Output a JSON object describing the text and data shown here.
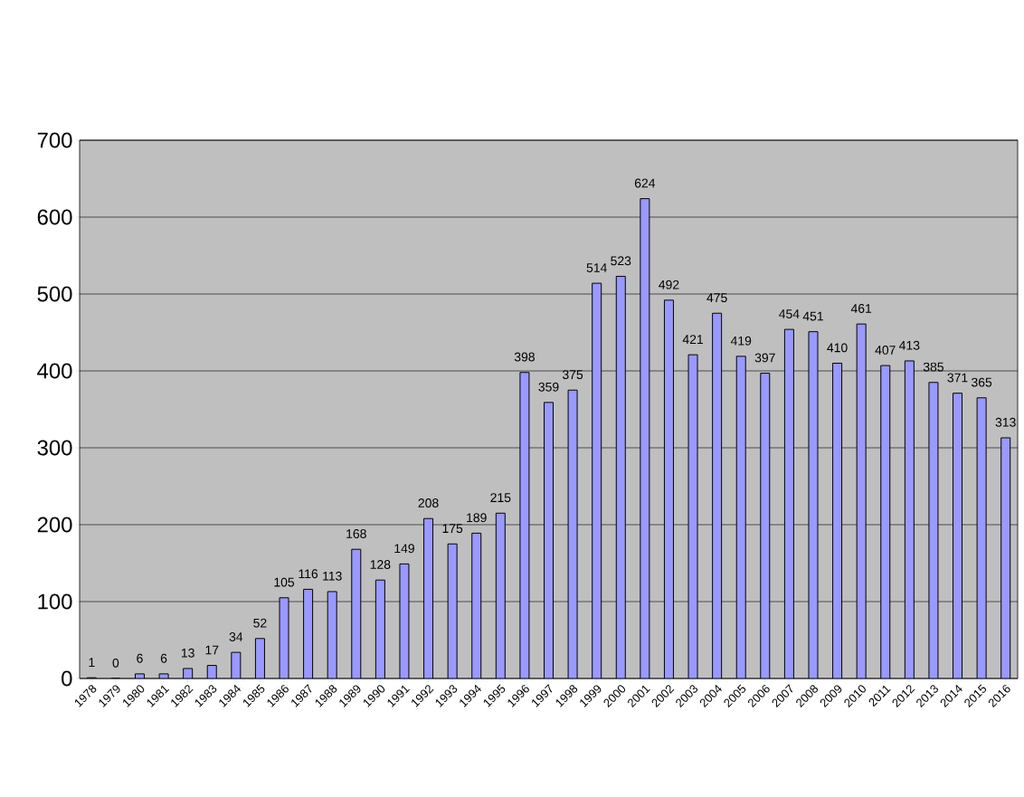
{
  "chart_data": {
    "type": "bar",
    "categories": [
      "1978",
      "1979",
      "1980",
      "1981",
      "1982",
      "1983",
      "1984",
      "1985",
      "1986",
      "1987",
      "1988",
      "1989",
      "1990",
      "1991",
      "1992",
      "1993",
      "1994",
      "1995",
      "1996",
      "1997",
      "1998",
      "1999",
      "2000",
      "2001",
      "2002",
      "2003",
      "2004",
      "2005",
      "2006",
      "2007",
      "2008",
      "2009",
      "2010",
      "2011",
      "2012",
      "2013",
      "2014",
      "2015",
      "2016"
    ],
    "values": [
      1,
      0,
      6,
      6,
      13,
      17,
      34,
      52,
      105,
      116,
      113,
      168,
      128,
      149,
      208,
      175,
      189,
      215,
      398,
      359,
      375,
      514,
      523,
      624,
      492,
      421,
      475,
      419,
      397,
      454,
      451,
      410,
      461,
      407,
      413,
      385,
      371,
      365,
      313
    ],
    "color": "#9999ff",
    "ylim": [
      0,
      700
    ],
    "yticks": [
      0,
      100,
      200,
      300,
      400,
      500,
      600,
      700
    ],
    "grid": "y",
    "data_labels": true
  }
}
